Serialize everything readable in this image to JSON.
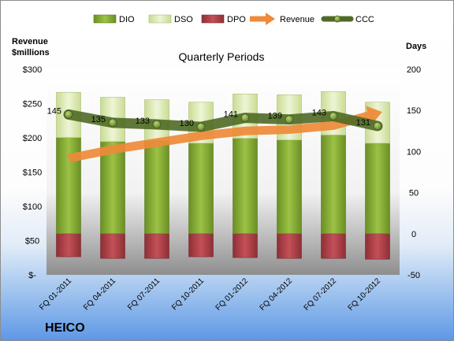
{
  "chart_data": {
    "type": "bar",
    "title": "Quarterly Periods",
    "company": "HEICO",
    "left_axis_title": [
      "Revenue",
      "$millions"
    ],
    "right_axis_title": "Days",
    "left_ticks": [
      "$300",
      "$250",
      "$200",
      "$150",
      "$100",
      "$50",
      "$-"
    ],
    "left_ylim": [
      0,
      300
    ],
    "right_ticks": [
      "200",
      "150",
      "100",
      "50",
      "0",
      "-50"
    ],
    "right_ylim": [
      -50,
      200
    ],
    "categories": [
      "FQ 01-2011",
      "FQ 04-2011",
      "FQ 07-2011",
      "FQ 10-2011",
      "FQ 01-2012",
      "FQ 04-2012",
      "FQ 07-2012",
      "FQ 10-2012"
    ],
    "legend": [
      "DIO",
      "DSO",
      "DPO",
      "Revenue",
      "CCC"
    ],
    "series": [
      {
        "name": "DIO",
        "axis": "days",
        "color": "#7fa52e",
        "values": [
          117,
          112,
          113,
          110,
          116,
          114,
          120,
          110
        ]
      },
      {
        "name": "DSO",
        "axis": "days",
        "color": "#d9e7b0",
        "values": [
          55,
          54,
          50,
          50,
          54,
          55,
          53,
          50
        ]
      },
      {
        "name": "DPO",
        "axis": "days",
        "color": "#b5424a",
        "values": [
          -28,
          -30,
          -30,
          -28,
          -29,
          -30,
          -30,
          -31
        ]
      },
      {
        "name": "Revenue",
        "axis": "revenue",
        "color": "#ee8a3a",
        "values": [
          170,
          183,
          193,
          203,
          210,
          212,
          218,
          236
        ]
      },
      {
        "name": "CCC",
        "axis": "days",
        "color": "#4f6a26",
        "values": [
          145,
          135,
          133,
          130,
          141,
          139,
          143,
          131
        ],
        "labels": [
          "145",
          "135",
          "133",
          "130",
          "141",
          "139",
          "143",
          "131"
        ]
      }
    ]
  }
}
